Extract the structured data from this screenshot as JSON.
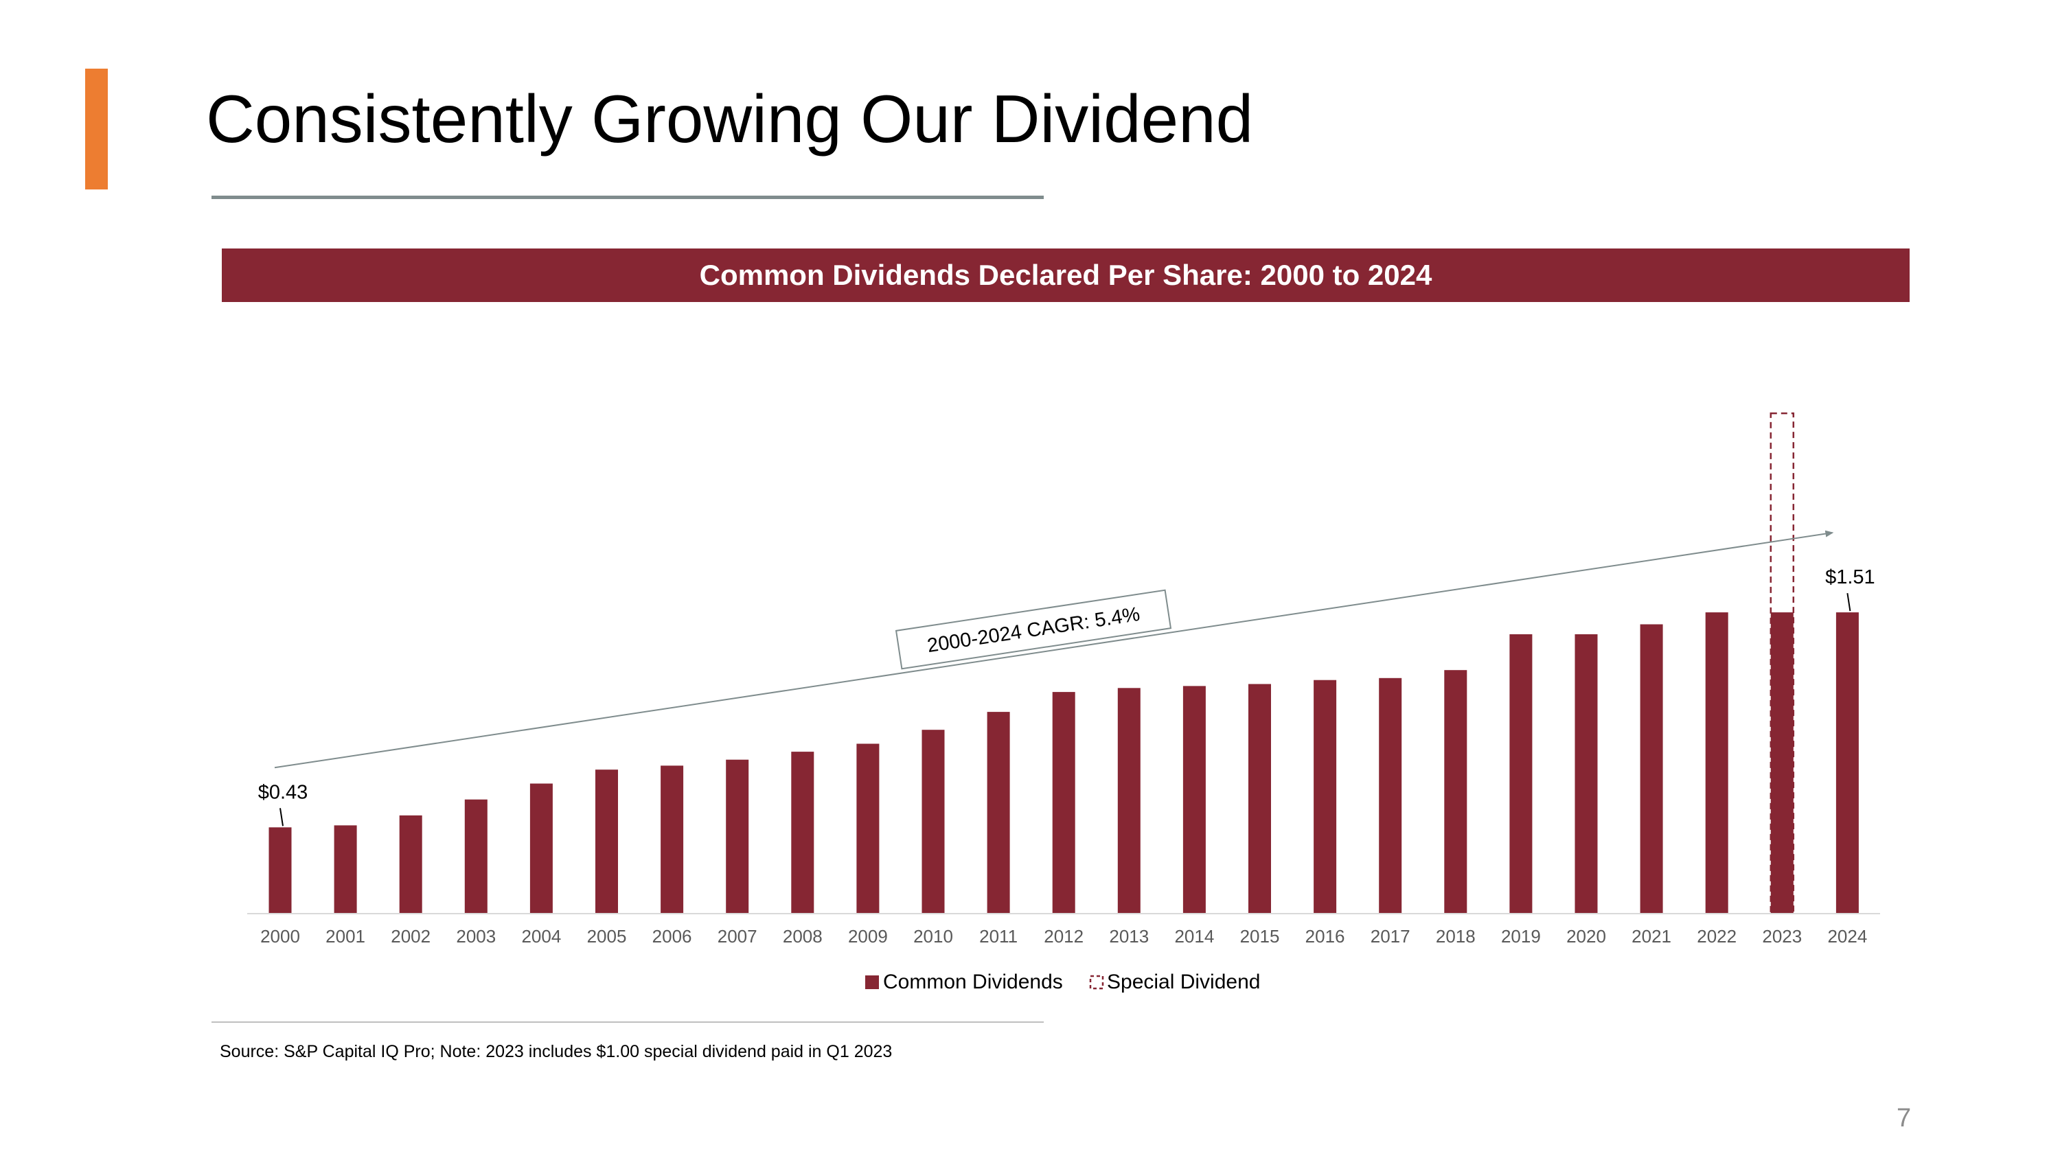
{
  "slide": {
    "title": "Consistently Growing Our Dividend",
    "accent_color": "#ED7D31",
    "source_note": "Source: S&P Capital IQ Pro; Note: 2023 includes $1.00 special dividend paid in Q1 2023",
    "page_number": "7"
  },
  "chart_data": {
    "type": "bar",
    "title": "Common Dividends Declared Per Share: 2000 to 2024",
    "categories": [
      "2000",
      "2001",
      "2002",
      "2003",
      "2004",
      "2005",
      "2006",
      "2007",
      "2008",
      "2009",
      "2010",
      "2011",
      "2012",
      "2013",
      "2014",
      "2015",
      "2016",
      "2017",
      "2018",
      "2019",
      "2020",
      "2021",
      "2022",
      "2023",
      "2024"
    ],
    "series": [
      {
        "name": "Common Dividends",
        "color": "#862633",
        "values": [
          0.43,
          0.44,
          0.49,
          0.57,
          0.65,
          0.72,
          0.74,
          0.77,
          0.81,
          0.85,
          0.92,
          1.01,
          1.11,
          1.13,
          1.14,
          1.15,
          1.17,
          1.18,
          1.22,
          1.4,
          1.4,
          1.45,
          1.51,
          1.51,
          1.51
        ]
      },
      {
        "name": "Special Dividend",
        "style": "dashed-outline",
        "values": [
          0,
          0,
          0,
          0,
          0,
          0,
          0,
          0,
          0,
          0,
          0,
          0,
          0,
          0,
          0,
          0,
          0,
          0,
          0,
          0,
          0,
          0,
          0,
          1.0,
          0
        ]
      }
    ],
    "data_labels": [
      {
        "category": "2000",
        "text": "$0.43"
      },
      {
        "category": "2024",
        "text": "$1.51"
      }
    ],
    "annotation": {
      "text": "2000-2024 CAGR: 5.4%",
      "arrow_from": {
        "category": "2000",
        "value": 0.73
      },
      "arrow_to": {
        "category": "2024",
        "value": 1.91
      }
    },
    "ylim": [
      0,
      2.55
    ],
    "xlabel": "",
    "ylabel": "",
    "grid": false,
    "legend": "bottom-center"
  }
}
